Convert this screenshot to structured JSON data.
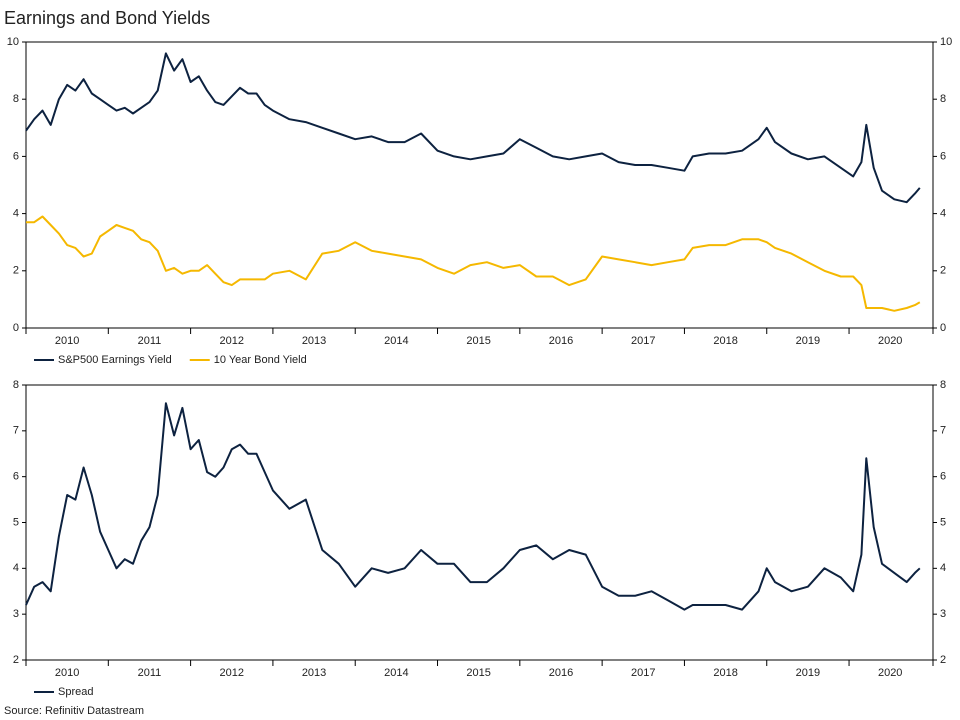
{
  "chart_data": [
    {
      "type": "line",
      "title": "Earnings and Bond Yields",
      "x": [
        2010.0,
        2010.1,
        2010.2,
        2010.3,
        2010.4,
        2010.5,
        2010.6,
        2010.7,
        2010.8,
        2010.9,
        2011.0,
        2011.1,
        2011.2,
        2011.3,
        2011.4,
        2011.5,
        2011.6,
        2011.7,
        2011.8,
        2011.9,
        2012.0,
        2012.1,
        2012.2,
        2012.3,
        2012.4,
        2012.5,
        2012.6,
        2012.7,
        2012.8,
        2012.9,
        2013.0,
        2013.2,
        2013.4,
        2013.6,
        2013.8,
        2014.0,
        2014.2,
        2014.4,
        2014.6,
        2014.8,
        2015.0,
        2015.2,
        2015.4,
        2015.6,
        2015.8,
        2016.0,
        2016.2,
        2016.4,
        2016.6,
        2016.8,
        2017.0,
        2017.2,
        2017.4,
        2017.6,
        2017.8,
        2018.0,
        2018.1,
        2018.3,
        2018.5,
        2018.7,
        2018.9,
        2019.0,
        2019.1,
        2019.3,
        2019.5,
        2019.7,
        2019.9,
        2020.05,
        2020.15,
        2020.21,
        2020.3,
        2020.4,
        2020.55,
        2020.7,
        2020.8,
        2020.86
      ],
      "series": [
        {
          "name": "S&P500 Earnings Yield",
          "color": "#0d2240",
          "values": [
            6.9,
            7.3,
            7.6,
            7.1,
            8.0,
            8.5,
            8.3,
            8.7,
            8.2,
            8.0,
            7.8,
            7.6,
            7.7,
            7.5,
            7.7,
            7.9,
            8.3,
            9.6,
            9.0,
            9.4,
            8.6,
            8.8,
            8.3,
            7.9,
            7.8,
            8.1,
            8.4,
            8.2,
            8.2,
            7.8,
            7.6,
            7.3,
            7.2,
            7.0,
            6.8,
            6.6,
            6.7,
            6.5,
            6.5,
            6.8,
            6.2,
            6.0,
            5.9,
            6.0,
            6.1,
            6.6,
            6.3,
            6.0,
            5.9,
            6.0,
            6.1,
            5.8,
            5.7,
            5.7,
            5.6,
            5.5,
            6.0,
            6.1,
            6.1,
            6.2,
            6.6,
            7.0,
            6.5,
            6.1,
            5.9,
            6.0,
            5.6,
            5.3,
            5.8,
            7.1,
            5.6,
            4.8,
            4.5,
            4.4,
            4.7,
            4.9
          ]
        },
        {
          "name": "10 Year Bond Yield",
          "color": "#f5b800",
          "values": [
            3.7,
            3.7,
            3.9,
            3.6,
            3.3,
            2.9,
            2.8,
            2.5,
            2.6,
            3.2,
            3.4,
            3.6,
            3.5,
            3.4,
            3.1,
            3.0,
            2.7,
            2.0,
            2.1,
            1.9,
            2.0,
            2.0,
            2.2,
            1.9,
            1.6,
            1.5,
            1.7,
            1.7,
            1.7,
            1.7,
            1.9,
            2.0,
            1.7,
            2.6,
            2.7,
            3.0,
            2.7,
            2.6,
            2.5,
            2.4,
            2.1,
            1.9,
            2.2,
            2.3,
            2.1,
            2.2,
            1.8,
            1.8,
            1.5,
            1.7,
            2.5,
            2.4,
            2.3,
            2.2,
            2.3,
            2.4,
            2.8,
            2.9,
            2.9,
            3.1,
            3.1,
            3.0,
            2.8,
            2.6,
            2.3,
            2.0,
            1.8,
            1.8,
            1.5,
            0.7,
            0.7,
            0.7,
            0.6,
            0.7,
            0.8,
            0.9
          ]
        }
      ],
      "xlim": [
        2010,
        2021.02
      ],
      "xticks": [
        2010,
        2011,
        2012,
        2013,
        2014,
        2015,
        2016,
        2017,
        2018,
        2019,
        2020
      ],
      "ylim": [
        0,
        10
      ],
      "yticks": [
        0,
        2,
        4,
        6,
        8,
        10
      ]
    },
    {
      "type": "line",
      "x": [
        2010.0,
        2010.1,
        2010.2,
        2010.3,
        2010.4,
        2010.5,
        2010.6,
        2010.7,
        2010.8,
        2010.9,
        2011.0,
        2011.1,
        2011.2,
        2011.3,
        2011.4,
        2011.5,
        2011.6,
        2011.7,
        2011.8,
        2011.9,
        2012.0,
        2012.1,
        2012.2,
        2012.3,
        2012.4,
        2012.5,
        2012.6,
        2012.7,
        2012.8,
        2012.9,
        2013.0,
        2013.2,
        2013.4,
        2013.6,
        2013.8,
        2014.0,
        2014.2,
        2014.4,
        2014.6,
        2014.8,
        2015.0,
        2015.2,
        2015.4,
        2015.6,
        2015.8,
        2016.0,
        2016.2,
        2016.4,
        2016.6,
        2016.8,
        2017.0,
        2017.2,
        2017.4,
        2017.6,
        2017.8,
        2018.0,
        2018.1,
        2018.3,
        2018.5,
        2018.7,
        2018.9,
        2019.0,
        2019.1,
        2019.3,
        2019.5,
        2019.7,
        2019.9,
        2020.05,
        2020.15,
        2020.21,
        2020.3,
        2020.4,
        2020.55,
        2020.7,
        2020.8,
        2020.86
      ],
      "series": [
        {
          "name": "Spread",
          "color": "#0d2240",
          "values": [
            3.2,
            3.6,
            3.7,
            3.5,
            4.7,
            5.6,
            5.5,
            6.2,
            5.6,
            4.8,
            4.4,
            4.0,
            4.2,
            4.1,
            4.6,
            4.9,
            5.6,
            7.6,
            6.9,
            7.5,
            6.6,
            6.8,
            6.1,
            6.0,
            6.2,
            6.6,
            6.7,
            6.5,
            6.5,
            6.1,
            5.7,
            5.3,
            5.5,
            4.4,
            4.1,
            3.6,
            4.0,
            3.9,
            4.0,
            4.4,
            4.1,
            4.1,
            3.7,
            3.7,
            4.0,
            4.4,
            4.5,
            4.2,
            4.4,
            4.3,
            3.6,
            3.4,
            3.4,
            3.5,
            3.3,
            3.1,
            3.2,
            3.2,
            3.2,
            3.1,
            3.5,
            4.0,
            3.7,
            3.5,
            3.6,
            4.0,
            3.8,
            3.5,
            4.3,
            6.4,
            4.9,
            4.1,
            3.9,
            3.7,
            3.9,
            4.0
          ]
        }
      ],
      "xlim": [
        2010,
        2021.02
      ],
      "xticks": [
        2010,
        2011,
        2012,
        2013,
        2014,
        2015,
        2016,
        2017,
        2018,
        2019,
        2020
      ],
      "ylim": [
        2,
        8
      ],
      "yticks": [
        2,
        3,
        4,
        5,
        6,
        7,
        8
      ]
    }
  ],
  "source": "Source: Refinitiv Datastream"
}
